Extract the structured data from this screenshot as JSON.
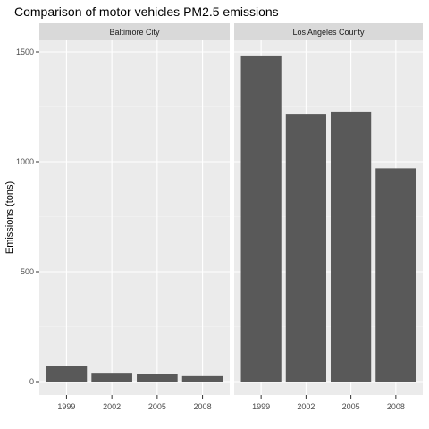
{
  "chart_data": {
    "type": "bar",
    "title": "Comparison of motor vehicles PM2.5 emissions",
    "xlabel": "",
    "ylabel": "Emissions (tons)",
    "ylim": [
      0,
      1580
    ],
    "yticks": [
      0,
      500,
      1000,
      1500
    ],
    "grid": true,
    "categories": [
      "1999",
      "2002",
      "2005",
      "2008"
    ],
    "facets": [
      {
        "name": "Baltimore City",
        "values": [
          72,
          40,
          36,
          25
        ]
      },
      {
        "name": "Los Angeles County",
        "values": [
          1480,
          1215,
          1228,
          970
        ]
      }
    ],
    "colors": {
      "bar": "#595959",
      "panel": "#ebebeb",
      "strip": "#d9d9d9",
      "grid_major": "#ffffff",
      "grid_minor": "#f5f5f5",
      "tick": "#333333"
    }
  }
}
